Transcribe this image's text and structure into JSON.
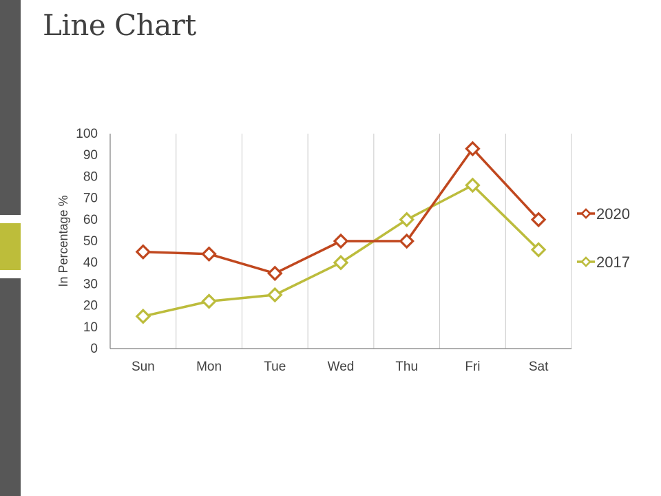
{
  "slide": {
    "title": "Line Chart"
  },
  "colors": {
    "sidebar": "#575757",
    "accent": "#bdbd3a"
  },
  "chart_data": {
    "type": "line",
    "title": "",
    "xlabel": "",
    "ylabel": "In Percentage %",
    "ylim": [
      0,
      100
    ],
    "yticks": [
      0,
      10,
      20,
      30,
      40,
      50,
      60,
      70,
      80,
      90,
      100
    ],
    "categories": [
      "Sun",
      "Mon",
      "Tue",
      "Wed",
      "Thu",
      "Fri",
      "Sat"
    ],
    "grid": "vertical",
    "legend_position": "right",
    "series": [
      {
        "name": "2020",
        "color": "#c0471e",
        "marker": "diamond",
        "values": [
          45,
          44,
          35,
          50,
          50,
          93,
          60
        ]
      },
      {
        "name": "2017",
        "color": "#bcbc3c",
        "marker": "diamond",
        "values": [
          15,
          22,
          25,
          40,
          60,
          76,
          46
        ]
      }
    ]
  }
}
